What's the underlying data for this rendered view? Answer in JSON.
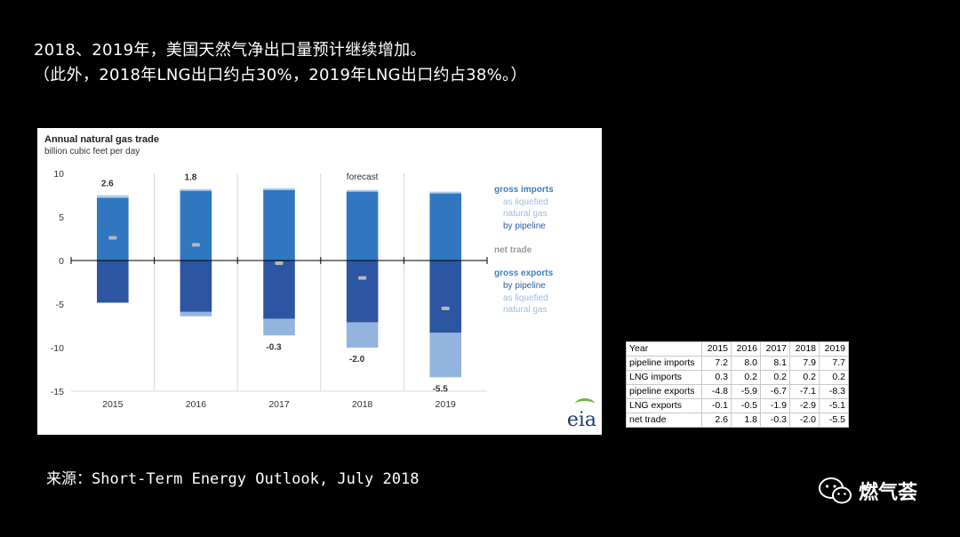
{
  "slide": {
    "headline_1": "2018、2019年，美国天然气净出口量预计继续增加。",
    "headline_2": "（此外，2018年LNG出口约占30%，2019年LNG出口约占38%。）",
    "source": "来源：Short-Term Energy Outlook, July 2018",
    "watermark": "燃气荟",
    "watermark_icon": "wechat-icon"
  },
  "chart_data": {
    "type": "bar",
    "stacked": true,
    "title": "Annual natural gas trade",
    "subtitle": "billion cubic feet per day",
    "categories": [
      "2015",
      "2016",
      "2017",
      "2018",
      "2019"
    ],
    "series": [
      {
        "name": "by pipeline",
        "group": "gross imports",
        "values": [
          7.2,
          8.0,
          8.1,
          7.9,
          7.7
        ],
        "color": "#3077bf"
      },
      {
        "name": "as liquefied natural gas",
        "group": "gross imports",
        "values": [
          0.3,
          0.2,
          0.2,
          0.2,
          0.2
        ],
        "color": "#b4cde9"
      },
      {
        "name": "by pipeline",
        "group": "gross exports",
        "values": [
          -4.8,
          -5.9,
          -6.7,
          -7.1,
          -8.3
        ],
        "color": "#2c55a2"
      },
      {
        "name": "as liquefied natural gas",
        "group": "gross exports",
        "values": [
          -0.1,
          -0.5,
          -1.9,
          -2.9,
          -5.1
        ],
        "color": "#94b4e0"
      },
      {
        "name": "net trade",
        "type": "marker",
        "values": [
          2.6,
          1.8,
          -0.3,
          -2.0,
          -5.5
        ],
        "color": "#b8b8b8"
      }
    ],
    "data_labels": [
      "2.6",
      "1.8",
      "-0.3",
      "-2.0",
      "-5.5"
    ],
    "annotation": "forecast",
    "ylim": [
      -15,
      10
    ],
    "yticks": [
      "10",
      "5",
      "0",
      "-5",
      "-10",
      "-15"
    ],
    "ytick_values": [
      10,
      5,
      0,
      -5,
      -10,
      -15
    ],
    "grid": true,
    "legend": {
      "position": "right",
      "gross_imports": "gross imports",
      "imports_lng_1": "as liquefied",
      "imports_lng_2": "natural gas",
      "imports_pipeline": "by pipeline",
      "net_trade": "net trade",
      "gross_exports": "gross exports",
      "exports_pipeline": "by pipeline",
      "exports_lng_1": "as liquefied",
      "exports_lng_2": "natural gas"
    },
    "logo": "eia"
  },
  "table": {
    "header": [
      "Year",
      "2015",
      "2016",
      "2017",
      "2018",
      "2019"
    ],
    "rows": [
      [
        "pipeline imports",
        "7.2",
        "8.0",
        "8.1",
        "7.9",
        "7.7"
      ],
      [
        "LNG imports",
        "0.3",
        "0.2",
        "0.2",
        "0.2",
        "0.2"
      ],
      [
        "pipeline exports",
        "-4.8",
        "-5.9",
        "-6.7",
        "-7.1",
        "-8.3"
      ],
      [
        "LNG exports",
        "-0.1",
        "-0.5",
        "-1.9",
        "-2.9",
        "-5.1"
      ],
      [
        "net trade",
        "2.6",
        "1.8",
        "-0.3",
        "-2.0",
        "-5.5"
      ]
    ]
  }
}
